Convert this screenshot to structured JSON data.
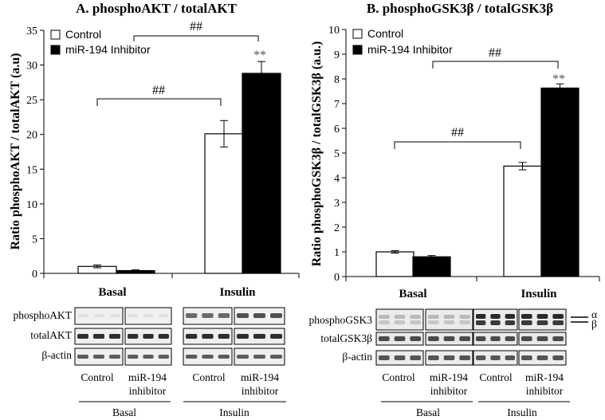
{
  "chart_data": [
    {
      "id": "A",
      "type": "bar",
      "title": "A. phosphoAKT / totalAKT",
      "ylabel": "Ratio phosphoAKT / totalAKT (a.u)",
      "xlabel": "",
      "categories": [
        "Basal",
        "Insulin"
      ],
      "ylim": [
        0,
        35
      ],
      "yticks": [
        0,
        5,
        10,
        15,
        20,
        25,
        30,
        35
      ],
      "series": [
        {
          "name": "Control",
          "color": "#ffffff",
          "values": [
            1.0,
            20.1
          ],
          "errors": [
            0.2,
            1.9
          ]
        },
        {
          "name": "miR-194 Inhibitor",
          "color": "#000000",
          "values": [
            0.4,
            28.8
          ],
          "errors": [
            0.1,
            1.7
          ]
        }
      ],
      "annotations": {
        "bracket_basal_insulin": "##",
        "bracket_control_inhibitor": "##",
        "star": "**"
      }
    },
    {
      "id": "B",
      "type": "bar",
      "title": "B. phosphoGSK3β / totalGSK3β",
      "ylabel": "Ratio phosphoGSK3β / totalGSK3β (a.u.)",
      "xlabel": "",
      "categories": [
        "Basal",
        "Insulin"
      ],
      "ylim": [
        0,
        10
      ],
      "yticks": [
        0,
        1,
        2,
        3,
        4,
        5,
        6,
        7,
        8,
        9,
        10
      ],
      "series": [
        {
          "name": "Control",
          "color": "#ffffff",
          "values": [
            1.0,
            4.47
          ],
          "errors": [
            0.05,
            0.15
          ]
        },
        {
          "name": "miR-194 Inhibitor",
          "color": "#000000",
          "values": [
            0.8,
            7.63
          ],
          "errors": [
            0.05,
            0.17
          ]
        }
      ],
      "annotations": {
        "bracket_basal_insulin": "##",
        "bracket_control_inhibitor": "##",
        "star": "**"
      }
    }
  ],
  "blots": {
    "A": {
      "rows": [
        "phosphoAKT",
        "totalAKT",
        "β-actin"
      ],
      "lane_labels": [
        [
          "Control"
        ],
        [
          "miR-194",
          "inhibitor"
        ],
        [
          "Control"
        ],
        [
          "miR-194",
          "inhibitor"
        ]
      ],
      "group_labels": [
        "Basal",
        "Insulin"
      ]
    },
    "B": {
      "rows": [
        "phosphoGSK3",
        "totalGSK3β",
        "β-actin"
      ],
      "isoform_labels": [
        "α",
        "β"
      ],
      "lane_labels": [
        [
          "Control"
        ],
        [
          "miR-194",
          "inhibitor"
        ],
        [
          "Control"
        ],
        [
          "miR-194",
          "inhibitor"
        ]
      ],
      "group_labels": [
        "Basal",
        "Insulin"
      ]
    }
  }
}
